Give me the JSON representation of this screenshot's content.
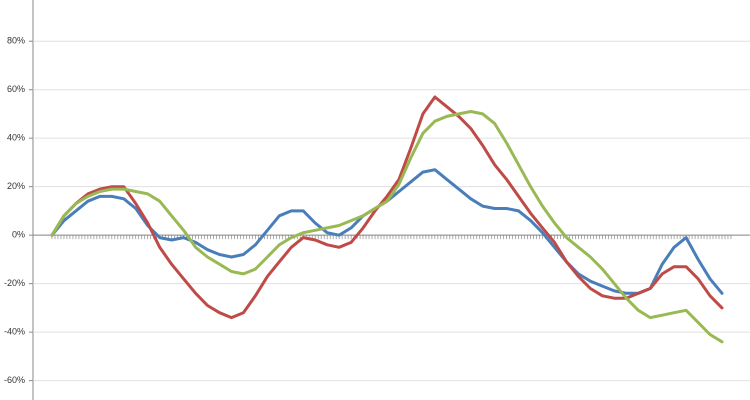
{
  "chart_data": {
    "type": "line",
    "categories": [
      null,
      null,
      null,
      null,
      null,
      null,
      null,
      null,
      null,
      null,
      null,
      null,
      null,
      null,
      null,
      null,
      null,
      null,
      null,
      null,
      null,
      null,
      null,
      null,
      null,
      null,
      null,
      null,
      null,
      null,
      null,
      null,
      null,
      null,
      null,
      null,
      null,
      null,
      null,
      null,
      null,
      null,
      null,
      null,
      null,
      null,
      null,
      null,
      null,
      null,
      null,
      null,
      null,
      null,
      null,
      null,
      null
    ],
    "series": [
      {
        "color": "#4a7ebb",
        "values": [
          0,
          6,
          10,
          14,
          16,
          16,
          15,
          11,
          4,
          -1,
          -2,
          -1,
          -3,
          -6,
          -8,
          -9,
          -8,
          -4,
          2,
          8,
          10,
          10,
          5,
          1,
          0,
          3,
          8,
          11,
          14,
          18,
          22,
          26,
          27,
          23,
          19,
          15,
          12,
          11,
          11,
          10,
          6,
          1,
          -5,
          -11,
          -16,
          -19,
          -21,
          -23,
          -24,
          -24,
          -22,
          -12,
          -5,
          -1,
          -10,
          -18,
          -24
        ]
      },
      {
        "color": "#be4b48",
        "values": [
          0,
          8,
          13,
          17,
          19,
          20,
          20,
          13,
          5,
          -5,
          -12,
          -18,
          -24,
          -29,
          -32,
          -34,
          -32,
          -25,
          -17,
          -11,
          -5,
          -1,
          -2,
          -4,
          -5,
          -3,
          3,
          10,
          16,
          23,
          36,
          50,
          57,
          53,
          49,
          44,
          37,
          29,
          23,
          16,
          9,
          3,
          -3,
          -11,
          -17,
          -22,
          -25,
          -26,
          -26,
          -24,
          -22,
          -16,
          -13,
          -13,
          -18,
          -25,
          -30
        ]
      },
      {
        "color": "#98b954",
        "values": [
          0,
          8,
          13,
          16,
          18,
          19,
          19,
          18,
          17,
          14,
          8,
          2,
          -5,
          -9,
          -12,
          -15,
          -16,
          -14,
          -9,
          -4,
          -1,
          1,
          2,
          3,
          4,
          6,
          8,
          11,
          14,
          21,
          32,
          42,
          47,
          49,
          50,
          51,
          50,
          46,
          38,
          29,
          20,
          12,
          5,
          -1,
          -5,
          -9,
          -14,
          -20,
          -26,
          -31,
          -34,
          -33,
          -32,
          -31,
          -36,
          -41,
          -44
        ]
      }
    ],
    "ylim": [
      -68,
      97
    ],
    "yticks": [
      {
        "value": -60,
        "label": "-60%"
      },
      {
        "value": -40,
        "label": "-40%"
      },
      {
        "value": -20,
        "label": "-20%"
      },
      {
        "value": 0,
        "label": "0%"
      },
      {
        "value": 20,
        "label": "20%"
      },
      {
        "value": 40,
        "label": "40%"
      },
      {
        "value": 60,
        "label": "60%"
      },
      {
        "value": 80,
        "label": "80%"
      }
    ],
    "grid": true
  }
}
